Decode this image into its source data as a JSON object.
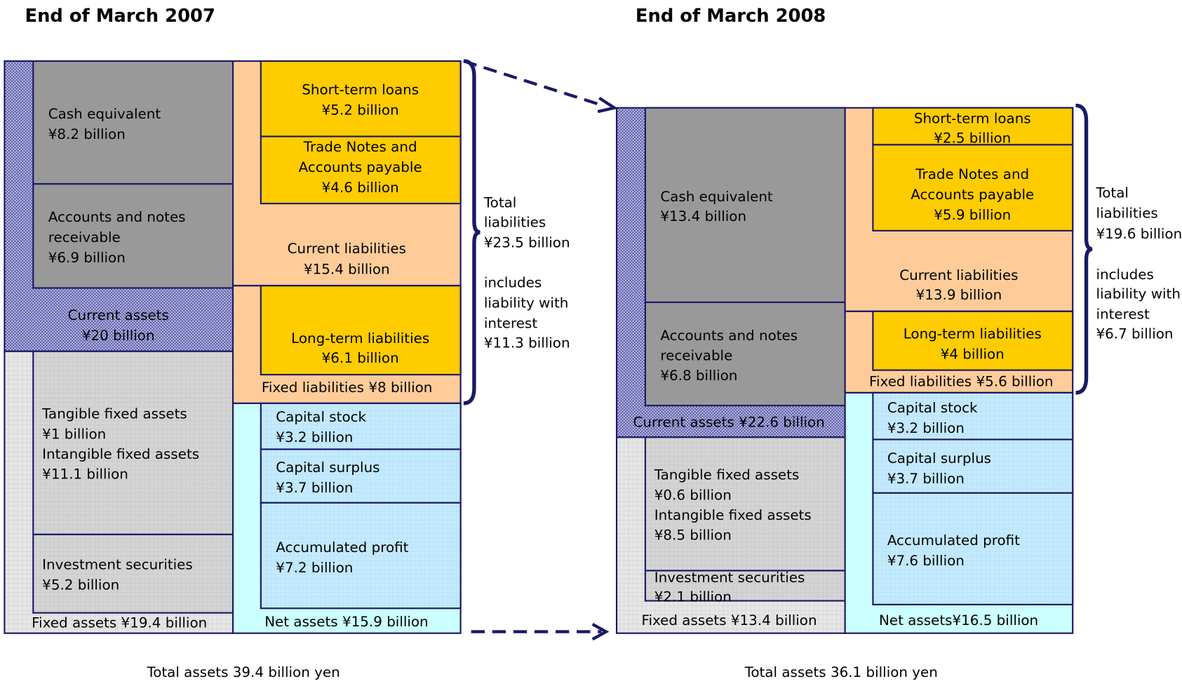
{
  "sheets": [
    {
      "title": "End of March 2007",
      "total_assets": "Total assets 39.4 billion yen",
      "boxes": [
        {
          "lines": [
            "Current assets",
            "¥20 billion"
          ]
        },
        {
          "lines": [
            "Fixed assets ¥19.4 billion"
          ]
        },
        {
          "lines": [
            "Cash equivalent",
            "¥8.2 billion"
          ]
        },
        {
          "lines": [
            "Accounts and notes",
            "receivable",
            "¥6.9 billion"
          ]
        },
        {
          "lines": [
            "Tangible fixed assets",
            "¥1 billion",
            "Intangible fixed assets",
            "¥11.1 billion"
          ]
        },
        {
          "lines": [
            "Investment securities",
            "¥5.2 billion"
          ]
        },
        {
          "lines": [
            "Current liabilities",
            "¥15.4 billion"
          ]
        },
        {
          "lines": [
            "Fixed liabilities ¥8 billion"
          ]
        },
        {
          "lines": [
            "Net assets ¥15.9 billion"
          ]
        },
        {
          "lines": [
            "Short-term loans",
            "¥5.2 billion"
          ]
        },
        {
          "lines": [
            "Trade Notes and",
            "Accounts payable",
            "¥4.6 billion"
          ]
        },
        {
          "lines": [
            "Long-term liabilities",
            "¥6.1 billion"
          ]
        },
        {
          "lines": [
            "Capital stock",
            "¥3.2 billion"
          ]
        },
        {
          "lines": [
            "Capital surplus",
            "¥3.7 billion"
          ]
        },
        {
          "lines": [
            "Accumulated profit",
            "¥7.2 billion"
          ]
        }
      ],
      "note": [
        "Total",
        "liabilities",
        "¥23.5 billion",
        "includes",
        "liability with",
        "interest",
        "¥11.3 billion"
      ]
    },
    {
      "title": "End of March 2008",
      "total_assets": "Total assets 36.1 billion yen",
      "boxes": [
        {
          "lines": [
            "Current assets ¥22.6 billion"
          ]
        },
        {
          "lines": [
            "Fixed assets ¥13.4 billion"
          ]
        },
        {
          "lines": [
            "Cash equivalent",
            "¥13.4 billion"
          ]
        },
        {
          "lines": [
            "Accounts and notes",
            "receivable",
            "¥6.8 billion"
          ]
        },
        {
          "lines": [
            "Tangible fixed assets",
            "¥0.6 billion",
            "Intangible fixed assets",
            "¥8.5 billion"
          ]
        },
        {
          "lines": [
            "Investment securities",
            "¥2.1 billion"
          ]
        },
        {
          "lines": [
            "Current liabilities",
            "¥13.9 billion"
          ]
        },
        {
          "lines": [
            "Fixed liabilities ¥5.6 billion"
          ]
        },
        {
          "lines": [
            "Net assets¥16.5 billion"
          ]
        },
        {
          "lines": [
            "Short-term loans",
            "¥2.5 billion"
          ]
        },
        {
          "lines": [
            "Trade Notes and",
            "Accounts payable",
            "¥5.9 billion"
          ]
        },
        {
          "lines": [
            "Long-term liabilities",
            "¥4 billion"
          ]
        },
        {
          "lines": [
            "Capital stock",
            "¥3.2 billion"
          ]
        },
        {
          "lines": [
            "Capital surplus",
            "¥3.7 billion"
          ]
        },
        {
          "lines": [
            "Accumulated profit",
            "¥7.6 billion"
          ]
        }
      ],
      "note": [
        "Total",
        "liabilities",
        "¥19.6 billion",
        "includes",
        "liability with",
        "interest",
        "¥6.7 billion"
      ]
    }
  ]
}
